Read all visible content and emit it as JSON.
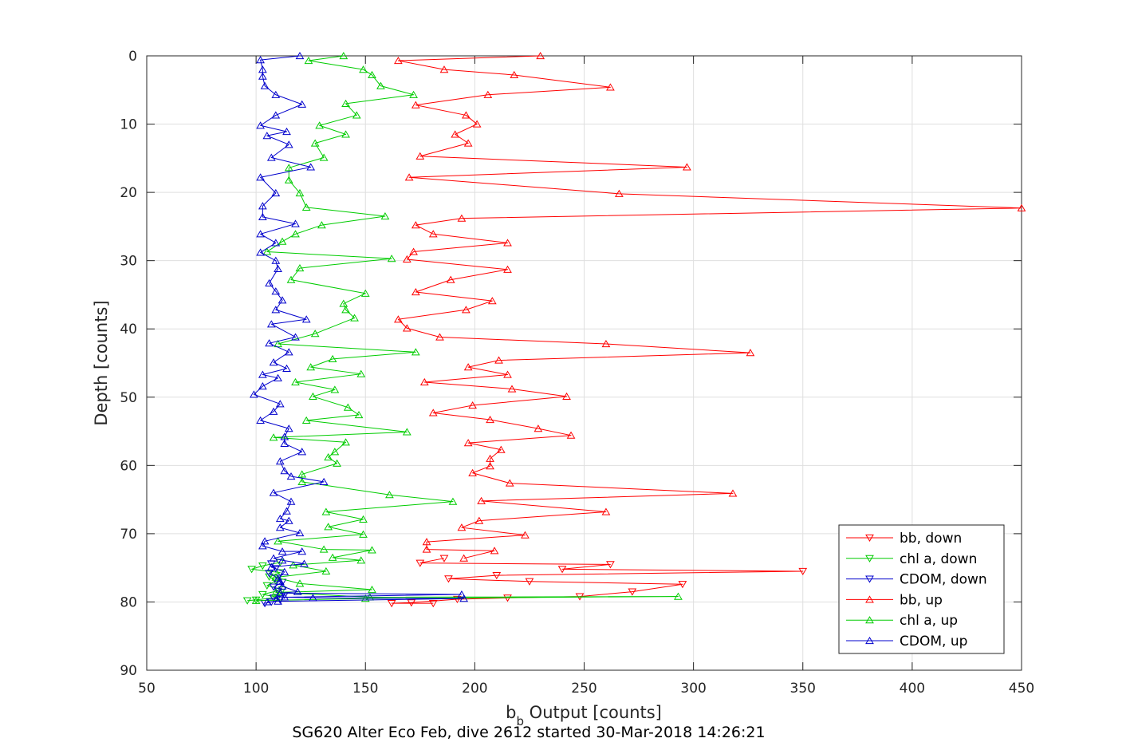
{
  "chart_data": {
    "type": "line",
    "title": "SG620 Alter Eco Feb, dive 2612 started 30-Mar-2018 14:26:21",
    "xlabel_main": "b",
    "xlabel_sub": "b",
    "xlabel_rest": " Output [counts]",
    "ylabel": "Depth [counts]",
    "xlim": [
      50,
      450
    ],
    "ylim": [
      0,
      90
    ],
    "y_reversed": true,
    "grid": true,
    "legend_position": "bottom-right",
    "x_ticks": [
      50,
      100,
      150,
      200,
      250,
      300,
      350,
      400,
      450
    ],
    "y_ticks": [
      0,
      10,
      20,
      30,
      40,
      50,
      60,
      70,
      80,
      90
    ],
    "x_tick_labels": [
      "50",
      "100",
      "150",
      "200",
      "250",
      "300",
      "350",
      "400",
      "450"
    ],
    "y_tick_labels": [
      "0",
      "10",
      "20",
      "30",
      "40",
      "50",
      "60",
      "70",
      "80",
      "90"
    ],
    "series": [
      {
        "name": "bb, down",
        "color": "#ff0000",
        "marker": "triangle-down",
        "points": [
          [
            181,
            80.2
          ],
          [
            162,
            80.2
          ],
          [
            171,
            80.1
          ],
          [
            192,
            79.6
          ],
          [
            215,
            79.4
          ],
          [
            248,
            79.2
          ],
          [
            272,
            78.5
          ],
          [
            295,
            77.4
          ],
          [
            225,
            77.0
          ],
          [
            188,
            76.6
          ],
          [
            210,
            76.1
          ],
          [
            350,
            75.5
          ],
          [
            240,
            75.2
          ],
          [
            262,
            74.5
          ],
          [
            175,
            74.3
          ],
          [
            186,
            73.6
          ]
        ]
      },
      {
        "name": "chl a, down",
        "color": "#00cc00",
        "marker": "triangle-down",
        "points": [
          [
            96,
            79.8
          ],
          [
            100,
            79.7
          ],
          [
            110,
            79.3
          ],
          [
            103,
            78.9
          ],
          [
            112,
            78.2
          ],
          [
            105,
            77.6
          ],
          [
            109,
            76.9
          ],
          [
            106,
            76.3
          ],
          [
            111,
            75.7
          ],
          [
            98,
            75.2
          ],
          [
            103,
            74.7
          ],
          [
            111,
            74.2
          ]
        ]
      },
      {
        "name": "CDOM, down",
        "color": "#0000cc",
        "marker": "triangle-down",
        "points": [
          [
            104,
            80.2
          ],
          [
            107,
            80.0
          ],
          [
            111,
            79.7
          ],
          [
            108,
            79.4
          ],
          [
            113,
            79.0
          ],
          [
            110,
            78.4
          ],
          [
            108,
            77.8
          ],
          [
            112,
            77.1
          ],
          [
            110,
            76.5
          ],
          [
            106,
            75.8
          ],
          [
            109,
            75.1
          ],
          [
            107,
            74.4
          ]
        ]
      },
      {
        "name": "bb, up",
        "color": "#ff0000",
        "marker": "triangle-up",
        "points": [
          [
            230,
            0.0
          ],
          [
            165,
            0.7
          ],
          [
            186,
            2.0
          ],
          [
            218,
            2.8
          ],
          [
            262,
            4.6
          ],
          [
            206,
            5.7
          ],
          [
            173,
            7.2
          ],
          [
            196,
            8.7
          ],
          [
            201,
            10.0
          ],
          [
            191,
            11.5
          ],
          [
            197,
            12.8
          ],
          [
            175,
            14.7
          ],
          [
            297,
            16.3
          ],
          [
            170,
            17.8
          ],
          [
            266,
            20.2
          ],
          [
            450,
            22.3
          ],
          [
            194,
            23.8
          ],
          [
            173,
            24.8
          ],
          [
            181,
            26.1
          ],
          [
            215,
            27.4
          ],
          [
            172,
            28.7
          ],
          [
            169,
            29.8
          ],
          [
            215,
            31.3
          ],
          [
            189,
            32.8
          ],
          [
            173,
            34.6
          ],
          [
            208,
            35.9
          ],
          [
            196,
            37.2
          ],
          [
            165,
            38.6
          ],
          [
            169,
            39.9
          ],
          [
            184,
            41.2
          ],
          [
            260,
            42.2
          ],
          [
            326,
            43.5
          ],
          [
            211,
            44.6
          ],
          [
            197,
            45.6
          ],
          [
            215,
            46.7
          ],
          [
            177,
            47.8
          ],
          [
            217,
            48.8
          ],
          [
            242,
            49.9
          ],
          [
            199,
            51.2
          ],
          [
            181,
            52.3
          ],
          [
            207,
            53.3
          ],
          [
            229,
            54.6
          ],
          [
            244,
            55.6
          ],
          [
            197,
            56.7
          ],
          [
            212,
            57.7
          ],
          [
            207,
            59.0
          ],
          [
            207,
            60.1
          ],
          [
            199,
            61.1
          ],
          [
            216,
            62.6
          ],
          [
            318,
            64.1
          ],
          [
            203,
            65.2
          ],
          [
            260,
            66.8
          ],
          [
            202,
            68.1
          ],
          [
            194,
            69.1
          ],
          [
            223,
            70.2
          ],
          [
            178,
            71.2
          ],
          [
            178,
            72.3
          ],
          [
            209,
            72.5
          ],
          [
            195,
            73.6
          ]
        ]
      },
      {
        "name": "chl a, up",
        "color": "#00cc00",
        "marker": "triangle-up",
        "points": [
          [
            140,
            0.0
          ],
          [
            124,
            0.7
          ],
          [
            149,
            2.0
          ],
          [
            153,
            2.8
          ],
          [
            157,
            4.4
          ],
          [
            172,
            5.7
          ],
          [
            141,
            7.0
          ],
          [
            146,
            8.7
          ],
          [
            129,
            10.2
          ],
          [
            141,
            11.5
          ],
          [
            127,
            12.8
          ],
          [
            131,
            14.9
          ],
          [
            115,
            16.4
          ],
          [
            115,
            18.2
          ],
          [
            120,
            20.1
          ],
          [
            123,
            22.2
          ],
          [
            159,
            23.5
          ],
          [
            130,
            24.8
          ],
          [
            118,
            26.1
          ],
          [
            112,
            27.2
          ],
          [
            105,
            28.7
          ],
          [
            162,
            29.7
          ],
          [
            120,
            31.1
          ],
          [
            116,
            32.8
          ],
          [
            150,
            34.8
          ],
          [
            140,
            36.3
          ],
          [
            141,
            37.2
          ],
          [
            145,
            38.4
          ],
          [
            127,
            40.7
          ],
          [
            110,
            42.2
          ],
          [
            173,
            43.4
          ],
          [
            135,
            44.4
          ],
          [
            125,
            45.6
          ],
          [
            148,
            46.6
          ],
          [
            118,
            47.8
          ],
          [
            136,
            48.9
          ],
          [
            126,
            49.9
          ],
          [
            142,
            51.5
          ],
          [
            147,
            52.6
          ],
          [
            123,
            53.4
          ],
          [
            169,
            55.1
          ],
          [
            108,
            55.9
          ],
          [
            141,
            56.6
          ],
          [
            136,
            58.0
          ],
          [
            133,
            58.8
          ],
          [
            137,
            59.7
          ],
          [
            121,
            61.3
          ],
          [
            121,
            62.4
          ],
          [
            161,
            64.3
          ],
          [
            190,
            65.3
          ],
          [
            132,
            66.8
          ],
          [
            149,
            67.9
          ],
          [
            133,
            69.0
          ],
          [
            149,
            70.1
          ],
          [
            110,
            71.1
          ],
          [
            131,
            72.3
          ],
          [
            153,
            72.4
          ],
          [
            135,
            73.5
          ],
          [
            148,
            73.9
          ],
          [
            117,
            74.6
          ],
          [
            132,
            75.5
          ],
          [
            109,
            76.4
          ],
          [
            120,
            77.3
          ],
          [
            153,
            78.2
          ],
          [
            109,
            78.6
          ],
          [
            152,
            79.3
          ],
          [
            293,
            79.2
          ],
          [
            150,
            79.5
          ],
          [
            100,
            79.8
          ]
        ]
      },
      {
        "name": "CDOM, up",
        "color": "#0000cc",
        "marker": "triangle-up",
        "points": [
          [
            120,
            0.0
          ],
          [
            102,
            0.6
          ],
          [
            103,
            2.0
          ],
          [
            103,
            3.0
          ],
          [
            104,
            4.4
          ],
          [
            109,
            5.7
          ],
          [
            121,
            7.1
          ],
          [
            109,
            8.7
          ],
          [
            102,
            10.2
          ],
          [
            114,
            11.1
          ],
          [
            105,
            11.7
          ],
          [
            115,
            13.0
          ],
          [
            107,
            14.9
          ],
          [
            125,
            16.3
          ],
          [
            102,
            17.8
          ],
          [
            109,
            20.1
          ],
          [
            103,
            22.0
          ],
          [
            103,
            23.6
          ],
          [
            118,
            24.6
          ],
          [
            102,
            26.1
          ],
          [
            109,
            27.4
          ],
          [
            102,
            28.8
          ],
          [
            109,
            30.0
          ],
          [
            110,
            31.2
          ],
          [
            106,
            33.3
          ],
          [
            109,
            34.5
          ],
          [
            112,
            35.8
          ],
          [
            109,
            37.2
          ],
          [
            123,
            38.6
          ],
          [
            107,
            39.3
          ],
          [
            118,
            41.2
          ],
          [
            106,
            42.1
          ],
          [
            115,
            43.4
          ],
          [
            108,
            44.9
          ],
          [
            114,
            45.8
          ],
          [
            103,
            46.7
          ],
          [
            110,
            47.2
          ],
          [
            103,
            48.4
          ],
          [
            99,
            49.6
          ],
          [
            111,
            51.0
          ],
          [
            108,
            52.1
          ],
          [
            102,
            53.4
          ],
          [
            115,
            54.6
          ],
          [
            113,
            55.8
          ],
          [
            113,
            56.8
          ],
          [
            121,
            58.0
          ],
          [
            111,
            59.4
          ],
          [
            113,
            60.8
          ],
          [
            116,
            61.6
          ],
          [
            131,
            62.4
          ],
          [
            108,
            64.0
          ],
          [
            116,
            65.3
          ],
          [
            114,
            66.7
          ],
          [
            111,
            67.8
          ],
          [
            115,
            68.1
          ],
          [
            111,
            69.1
          ],
          [
            120,
            69.9
          ],
          [
            104,
            71.1
          ],
          [
            103,
            71.8
          ],
          [
            112,
            72.6
          ],
          [
            121,
            72.6
          ],
          [
            108,
            73.6
          ],
          [
            112,
            73.9
          ],
          [
            122,
            74.4
          ],
          [
            107,
            74.9
          ],
          [
            113,
            75.6
          ],
          [
            110,
            76.6
          ],
          [
            111,
            77.0
          ],
          [
            112,
            77.7
          ],
          [
            119,
            78.5
          ],
          [
            111,
            78.7
          ],
          [
            194,
            78.9
          ],
          [
            113,
            79.3
          ],
          [
            126,
            79.4
          ],
          [
            195,
            79.5
          ],
          [
            110,
            79.9
          ],
          [
            105,
            80.0
          ]
        ]
      }
    ]
  }
}
